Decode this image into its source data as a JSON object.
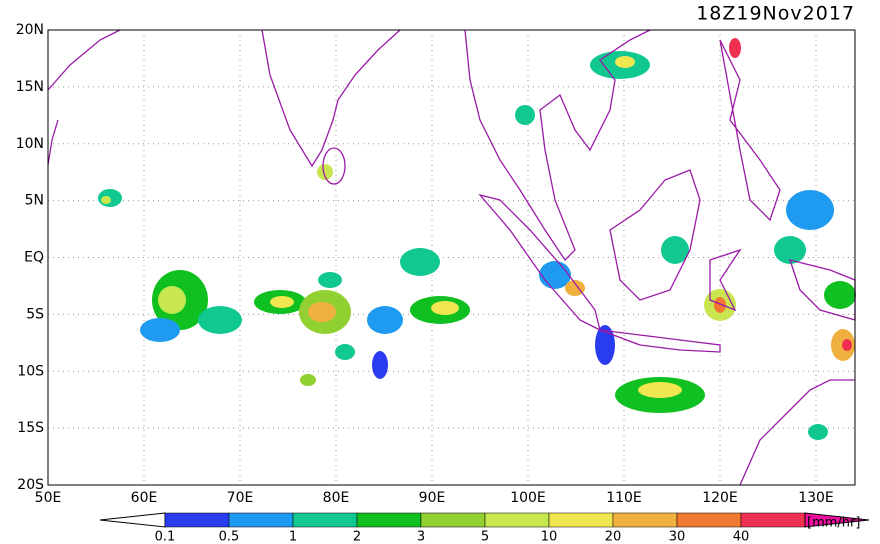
{
  "map": {
    "title": "18Z19Nov2017",
    "lat_labels": [
      "20N",
      "15N",
      "10N",
      "5N",
      "EQ",
      "5S",
      "10S",
      "15S",
      "20S"
    ],
    "lon_labels": [
      "50E",
      "60E",
      "70E",
      "80E",
      "90E",
      "100E",
      "110E",
      "120E",
      "130E"
    ],
    "colorbar": {
      "labels": [
        "0.1",
        "0.5",
        "1",
        "2",
        "3",
        "5",
        "10",
        "20",
        "30",
        "40"
      ],
      "units": "[mm/hr]"
    }
  }
}
